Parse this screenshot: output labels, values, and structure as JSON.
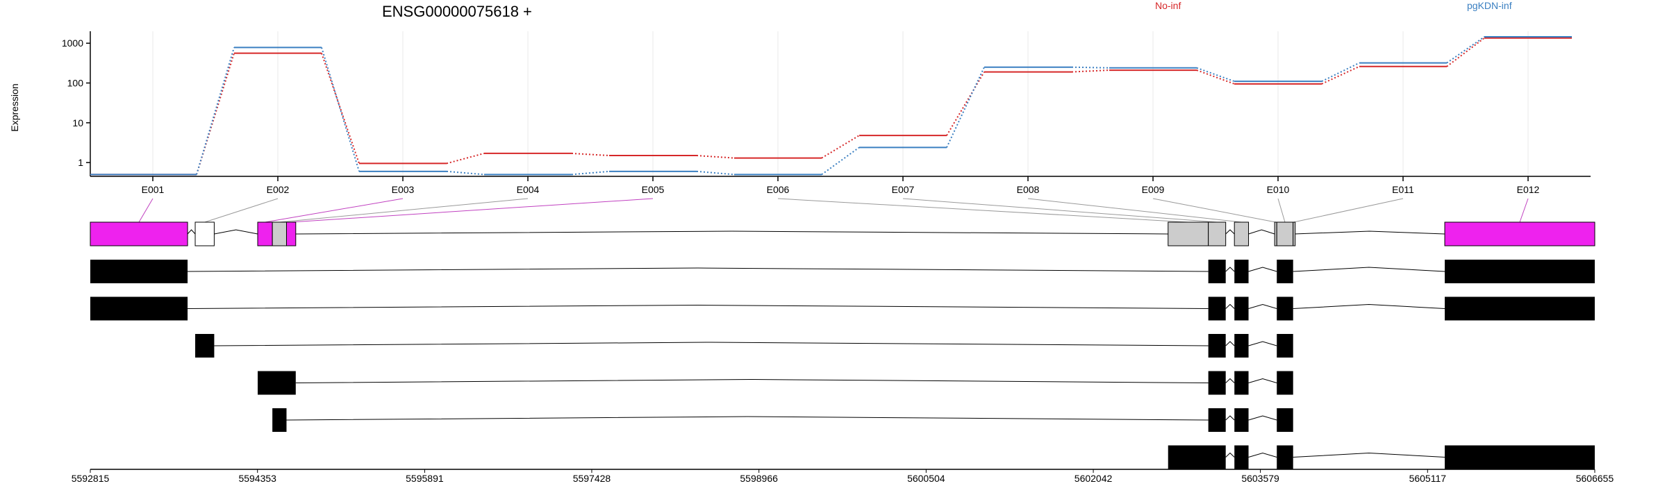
{
  "chart_data": {
    "type": "line",
    "title": "ENSG00000075618 +",
    "ylabel": "Expression",
    "y_scale": "log",
    "ylim": [
      0.45,
      2000
    ],
    "y_ticks": [
      1,
      10,
      100,
      1000
    ],
    "y_tick_labels": [
      "1",
      "10",
      "100",
      "1000"
    ],
    "grid": true,
    "legend_position": "top",
    "exons": [
      "E001",
      "E002",
      "E003",
      "E004",
      "E005",
      "E006",
      "E007",
      "E008",
      "E009",
      "E010",
      "E011",
      "E012"
    ],
    "series": [
      {
        "name": "No-inf",
        "color": "#d62728",
        "values": [
          0.5,
          560,
          0.95,
          1.7,
          1.5,
          1.3,
          4.8,
          190,
          210,
          95,
          260,
          1350
        ]
      },
      {
        "name": "pgKDN-inf",
        "color": "#3a7fc1",
        "values": [
          0.5,
          780,
          0.6,
          0.5,
          0.6,
          0.5,
          2.4,
          250,
          240,
          110,
          320,
          1450
        ]
      }
    ],
    "genomic_axis": {
      "range": [
        5592815,
        5606655
      ],
      "ticks": [
        5592815,
        5594353,
        5595891,
        5597428,
        5598966,
        5600504,
        5602042,
        5603579,
        5605117,
        5606655
      ]
    },
    "gene_model": {
      "exons": [
        {
          "id": "E001",
          "start": 5592815,
          "end": 5593710,
          "highlight": true
        },
        {
          "id": "E002",
          "start": 5593780,
          "end": 5593955,
          "highlight": false
        },
        {
          "id": "E003",
          "start": 5594355,
          "end": 5594490,
          "highlight": true
        },
        {
          "id": "E004",
          "start": 5594490,
          "end": 5594620,
          "highlight": false
        },
        {
          "id": "E005",
          "start": 5594620,
          "end": 5594705,
          "highlight": true
        },
        {
          "id": "E006",
          "start": 5602730,
          "end": 5603100,
          "highlight": false
        },
        {
          "id": "E007",
          "start": 5603100,
          "end": 5603260,
          "highlight": false
        },
        {
          "id": "E008",
          "start": 5603340,
          "end": 5603470,
          "highlight": false
        },
        {
          "id": "E009",
          "start": 5603710,
          "end": 5603730,
          "highlight": false
        },
        {
          "id": "E010",
          "start": 5603730,
          "end": 5603880,
          "highlight": false
        },
        {
          "id": "E011",
          "start": 5603880,
          "end": 5603890,
          "highlight": false
        },
        {
          "id": "E012",
          "start": 5605275,
          "end": 5606655,
          "highlight": true
        }
      ]
    },
    "transcripts": [
      {
        "exons": [
          [
            5592815,
            5593710
          ],
          [
            5603100,
            5603260
          ],
          [
            5603340,
            5603470
          ],
          [
            5603730,
            5603880
          ],
          [
            5605275,
            5606655
          ]
        ]
      },
      {
        "exons": [
          [
            5592815,
            5593710
          ],
          [
            5603100,
            5603260
          ],
          [
            5603340,
            5603470
          ],
          [
            5603730,
            5603880
          ],
          [
            5605275,
            5606655
          ]
        ]
      },
      {
        "exons": [
          [
            5593780,
            5593955
          ],
          [
            5603100,
            5603260
          ],
          [
            5603340,
            5603470
          ],
          [
            5603730,
            5603880
          ]
        ]
      },
      {
        "exons": [
          [
            5594355,
            5594705
          ],
          [
            5603100,
            5603260
          ],
          [
            5603340,
            5603470
          ],
          [
            5603730,
            5603880
          ]
        ]
      },
      {
        "exons": [
          [
            5594490,
            5594620
          ],
          [
            5603100,
            5603260
          ],
          [
            5603340,
            5603470
          ],
          [
            5603730,
            5603880
          ]
        ]
      },
      {
        "exons": [
          [
            5602730,
            5603260
          ],
          [
            5603340,
            5603470
          ],
          [
            5603730,
            5603880
          ],
          [
            5605275,
            5606655
          ]
        ]
      }
    ]
  }
}
